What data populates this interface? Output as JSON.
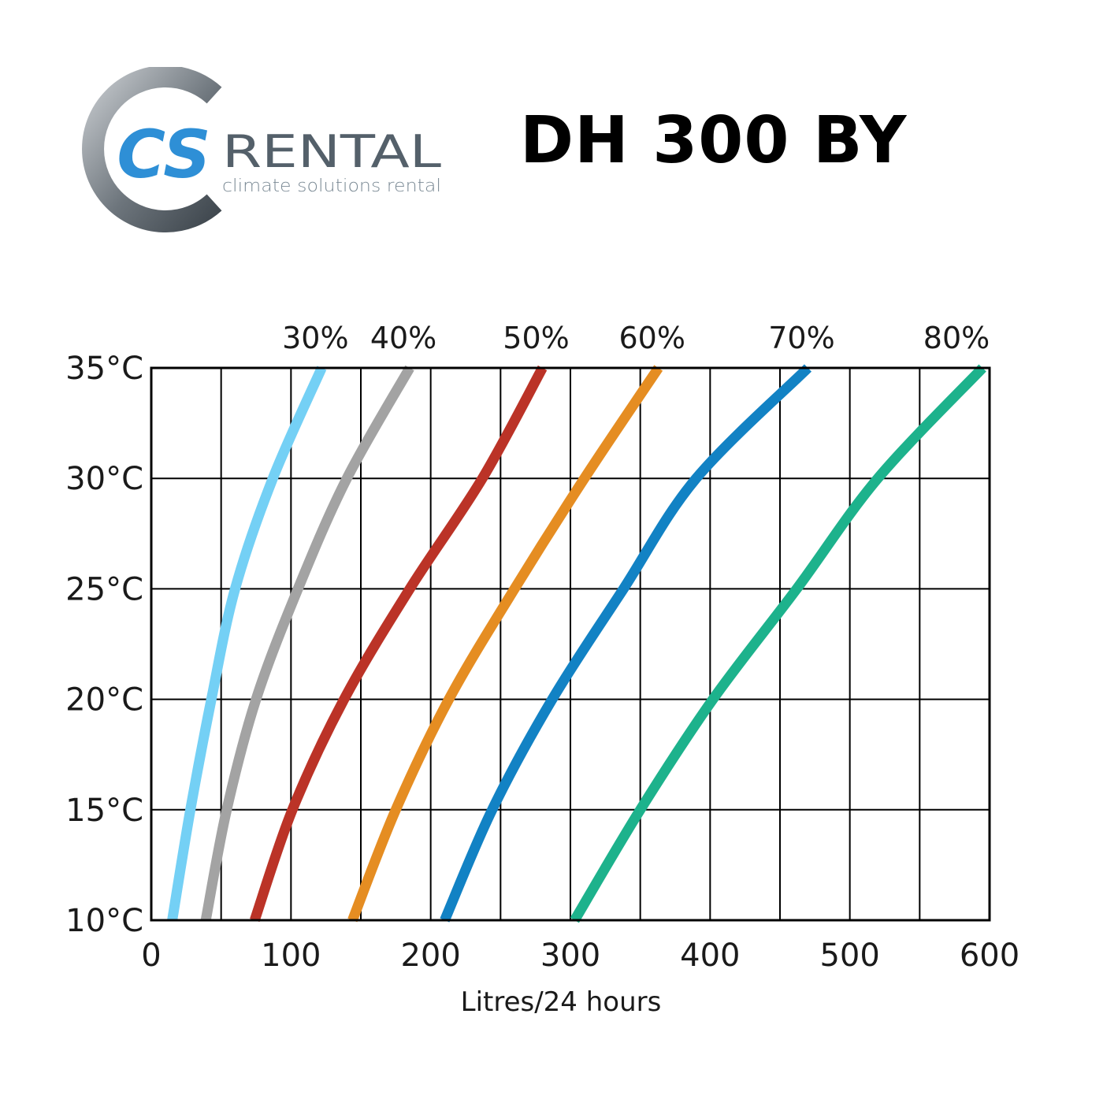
{
  "brand": {
    "logo_letters": "CS",
    "name": "RENTAL",
    "tagline": "climate solutions rental",
    "colors": {
      "ring": "#5f6870",
      "blue": "#2e8fd6",
      "text": "#54606a"
    }
  },
  "title": "DH 300 BY",
  "chart_data": {
    "type": "line",
    "xlabel": "Litres/24 hours",
    "ylabel": "",
    "xlim": [
      0,
      600
    ],
    "ylim": [
      10,
      35
    ],
    "xticks": [
      {
        "value": 0,
        "label": "0"
      },
      {
        "value": 100,
        "label": "100"
      },
      {
        "value": 200,
        "label": "200"
      },
      {
        "value": 300,
        "label": "300"
      },
      {
        "value": 400,
        "label": "400"
      },
      {
        "value": 500,
        "label": "500"
      },
      {
        "value": 600,
        "label": "600"
      }
    ],
    "yticks": [
      {
        "value": 10,
        "label": "10°C"
      },
      {
        "value": 15,
        "label": "15°C"
      },
      {
        "value": 20,
        "label": "20°C"
      },
      {
        "value": 25,
        "label": "25°C"
      },
      {
        "value": 30,
        "label": "30°C"
      },
      {
        "value": 35,
        "label": "35°C"
      }
    ],
    "grid": true,
    "series": [
      {
        "name": "30%",
        "color": "#74d0f5",
        "points": [
          [
            15,
            10
          ],
          [
            28,
            15
          ],
          [
            43,
            20
          ],
          [
            60,
            25
          ],
          [
            87,
            30
          ],
          [
            122,
            35
          ]
        ]
      },
      {
        "name": "40%",
        "color": "#a3a3a3",
        "points": [
          [
            39,
            10
          ],
          [
            54,
            15
          ],
          [
            75,
            20
          ],
          [
            105,
            25
          ],
          [
            140,
            30
          ],
          [
            185,
            35
          ]
        ]
      },
      {
        "name": "50%",
        "color": "#bb3327",
        "points": [
          [
            74,
            10
          ],
          [
            101,
            15
          ],
          [
            138,
            20
          ],
          [
            185,
            25
          ],
          [
            237,
            30
          ],
          [
            280,
            35
          ]
        ]
      },
      {
        "name": "60%",
        "color": "#e58d22",
        "points": [
          [
            144,
            10
          ],
          [
            175,
            15
          ],
          [
            213,
            20
          ],
          [
            260,
            25
          ],
          [
            310,
            30
          ],
          [
            363,
            35
          ]
        ]
      },
      {
        "name": "70%",
        "color": "#1282c4",
        "points": [
          [
            210,
            10
          ],
          [
            244,
            15
          ],
          [
            287,
            20
          ],
          [
            338,
            25
          ],
          [
            390,
            30
          ],
          [
            470,
            35
          ]
        ]
      },
      {
        "name": "80%",
        "color": "#1db28c",
        "points": [
          [
            303,
            10
          ],
          [
            350,
            15
          ],
          [
            402,
            20
          ],
          [
            462,
            25
          ],
          [
            520,
            30
          ],
          [
            595,
            35
          ]
        ]
      }
    ]
  }
}
